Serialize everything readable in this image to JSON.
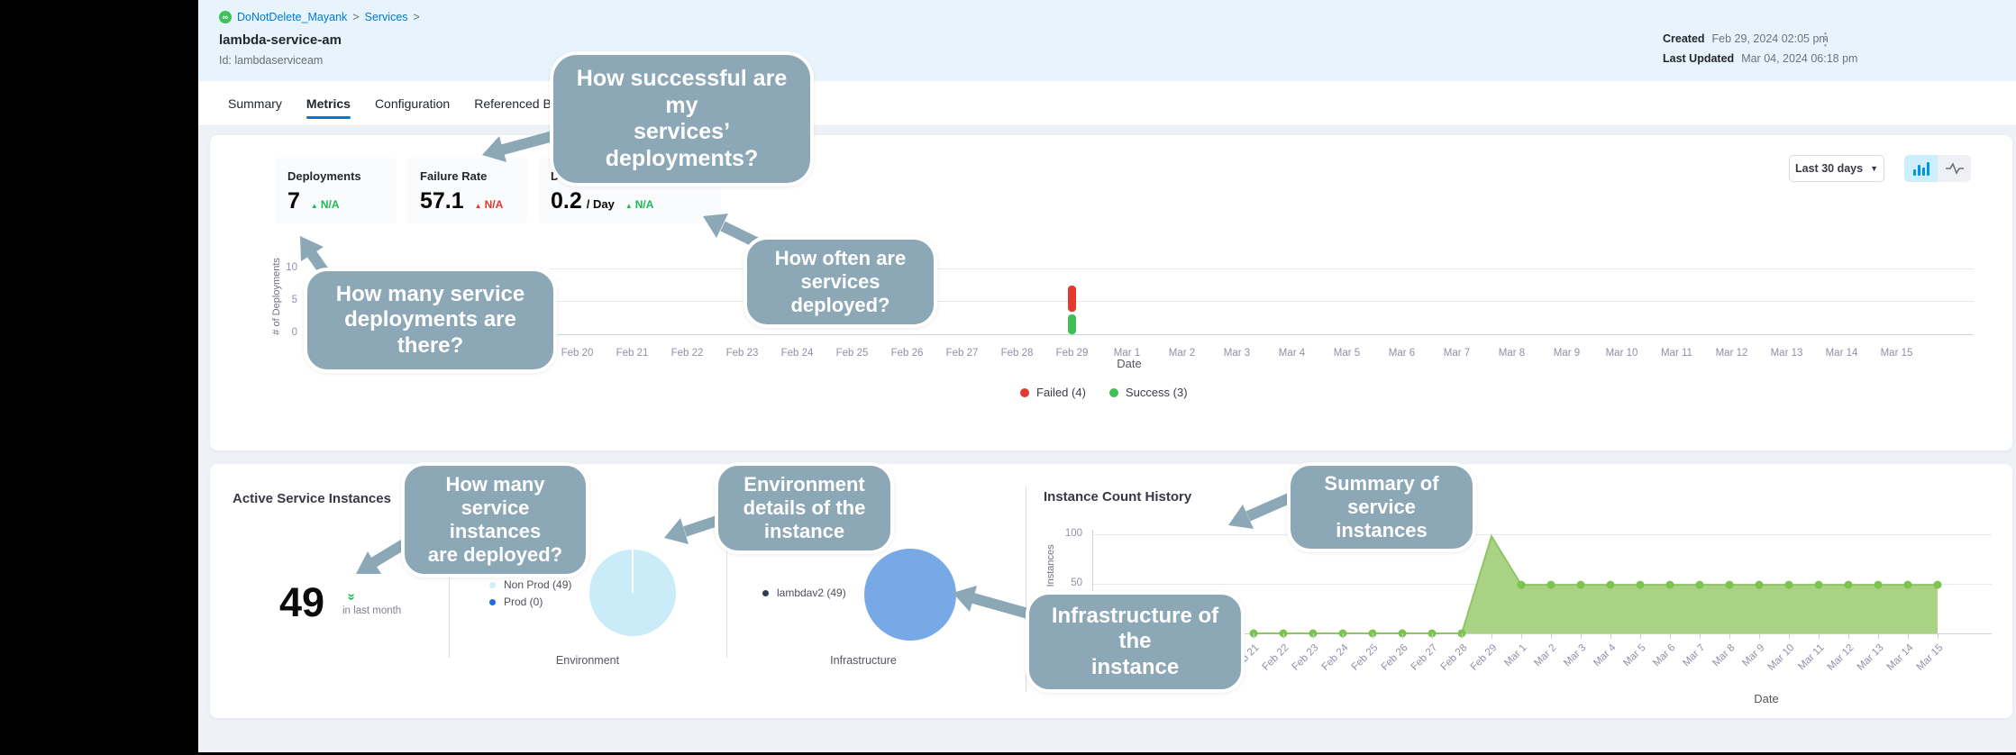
{
  "breadcrumb": {
    "project": "DoNotDelete_Mayank",
    "section": "Services",
    "sep": ">"
  },
  "header": {
    "title": "lambda-service-am",
    "id_label": "Id: lambdaserviceam",
    "created_label": "Created",
    "created_value": "Feb 29, 2024 02:05 pm",
    "updated_label": "Last Updated",
    "updated_value": "Mar 04, 2024 06:18 pm"
  },
  "tabs": [
    {
      "label": "Summary",
      "active": false
    },
    {
      "label": "Metrics",
      "active": true
    },
    {
      "label": "Configuration",
      "active": false
    },
    {
      "label": "Referenced By",
      "active": false
    }
  ],
  "metrics": {
    "deployments": {
      "label": "Deployments",
      "value": "7",
      "delta": "N/A",
      "trend": "up",
      "color": "green"
    },
    "failure_rate": {
      "label": "Failure Rate",
      "value": "57.1",
      "delta": "N/A",
      "trend": "up",
      "color": "red"
    },
    "frequency": {
      "label": "Deployment Frequency",
      "value": "0.2",
      "unit": "/ Day",
      "delta": "N/A",
      "trend": "up",
      "color": "green"
    }
  },
  "controls": {
    "range_label": "Last 30 days",
    "chart_toggle": [
      "bar-chart",
      "line-chart"
    ]
  },
  "instances": {
    "title": "Active Service Instances",
    "count": "49",
    "caption": "in last month"
  },
  "environment": {
    "caption": "Environment",
    "pie_color": "#c9ecf8",
    "legend": [
      {
        "label": "Non Prod (49)",
        "color": "#cdeff9"
      },
      {
        "label": "Prod (0)",
        "color": "#1a6ce0"
      }
    ]
  },
  "infrastructure": {
    "caption": "Infrastructure",
    "pie_color": "#77a9e7",
    "legend": [
      {
        "label": "lambdav2 (49)",
        "color": "#343a4e"
      }
    ]
  },
  "history": {
    "title": "Instance Count History"
  },
  "callouts": [
    {
      "id": "deployment-success",
      "text": "How successful are my\nservices’ deployments?"
    },
    {
      "id": "deployment-count",
      "text": "How many service\ndeployments are there?"
    },
    {
      "id": "deployment-frequency",
      "text": "How often are\nservices\ndeployed?"
    },
    {
      "id": "instance-count",
      "text": "How many\nservice instances\nare deployed?"
    },
    {
      "id": "environment-details",
      "text": "Environment\ndetails of the\ninstance"
    },
    {
      "id": "instance-summary",
      "text": "Summary of\nservice instances"
    },
    {
      "id": "instance-infrastructure",
      "text": "Infrastructure of the\ninstance"
    }
  ],
  "chart_data": [
    {
      "id": "deployments_by_date",
      "type": "bar",
      "stacked": true,
      "xlabel": "Date",
      "ylabel": "# of Deployments",
      "ylim": [
        0,
        10
      ],
      "yticks": [
        0,
        5,
        10
      ],
      "categories": [
        "Feb 20",
        "Feb 21",
        "Feb 22",
        "Feb 23",
        "Feb 24",
        "Feb 25",
        "Feb 26",
        "Feb 27",
        "Feb 28",
        "Feb 29",
        "Mar 1",
        "Mar 2",
        "Mar 3",
        "Mar 4",
        "Mar 5",
        "Mar 6",
        "Mar 7",
        "Mar 8",
        "Mar 9",
        "Mar 10",
        "Mar 11",
        "Mar 12",
        "Mar 13",
        "Mar 14",
        "Mar 15"
      ],
      "series": [
        {
          "name": "Failed",
          "total": 4,
          "color": "#e4392f",
          "values": [
            0,
            0,
            0,
            0,
            0,
            0,
            0,
            0,
            0,
            4,
            0,
            0,
            0,
            0,
            0,
            0,
            0,
            0,
            0,
            0,
            0,
            0,
            0,
            0,
            0
          ]
        },
        {
          "name": "Success",
          "total": 3,
          "color": "#3fbf53",
          "values": [
            0,
            0,
            0,
            0,
            0,
            0,
            0,
            0,
            0,
            3,
            0,
            0,
            0,
            0,
            0,
            0,
            0,
            0,
            0,
            0,
            0,
            0,
            0,
            0,
            0
          ]
        }
      ],
      "legend": [
        "Failed (4)",
        "Success (3)"
      ]
    },
    {
      "id": "environment_pie",
      "type": "pie",
      "title": "Environment",
      "slices": [
        {
          "label": "Non Prod",
          "value": 49,
          "color": "#c9ecf8"
        },
        {
          "label": "Prod",
          "value": 0,
          "color": "#1a6ce0"
        }
      ]
    },
    {
      "id": "infrastructure_pie",
      "type": "pie",
      "title": "Infrastructure",
      "slices": [
        {
          "label": "lambdav2",
          "value": 49,
          "color": "#77a9e7"
        }
      ]
    },
    {
      "id": "instance_count_history",
      "type": "area",
      "title": "Instance Count History",
      "xlabel": "Date",
      "ylabel": "Instances",
      "ylim": [
        0,
        100
      ],
      "yticks": [
        50,
        100
      ],
      "line_color": "#90c468",
      "fill_color": "#a9d383",
      "marker_color": "#7cc34f",
      "categories": [
        "Feb 21",
        "Feb 22",
        "Feb 23",
        "Feb 24",
        "Feb 25",
        "Feb 26",
        "Feb 27",
        "Feb 28",
        "Feb 29",
        "Mar 1",
        "Mar 2",
        "Mar 3",
        "Mar 4",
        "Mar 5",
        "Mar 6",
        "Mar 7",
        "Mar 8",
        "Mar 9",
        "Mar 10",
        "Mar 11",
        "Mar 12",
        "Mar 13",
        "Mar 14",
        "Mar 15"
      ],
      "values": [
        0,
        0,
        0,
        0,
        0,
        0,
        0,
        0,
        98,
        49,
        49,
        49,
        49,
        49,
        49,
        49,
        49,
        49,
        49,
        49,
        49,
        49,
        49,
        49
      ]
    }
  ]
}
